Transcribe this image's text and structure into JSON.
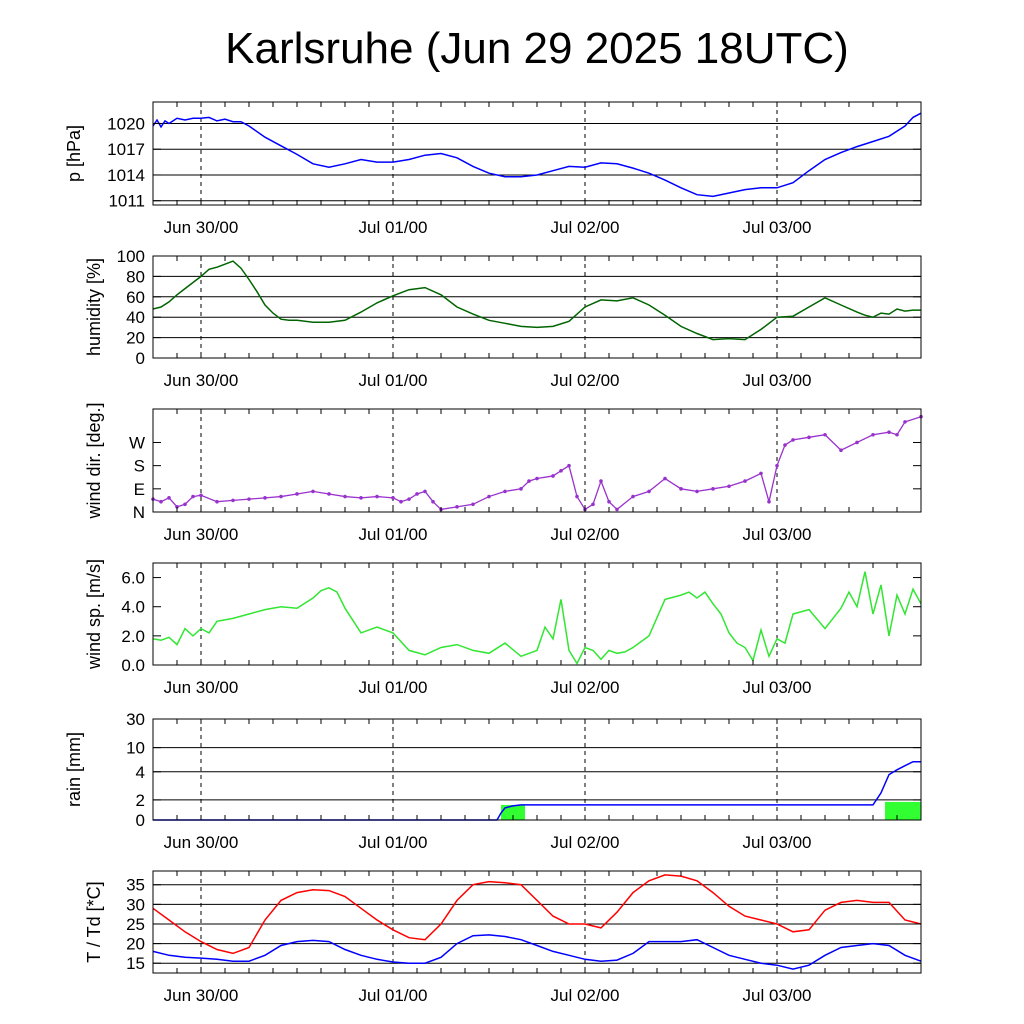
{
  "title": "Karlsruhe (Jun 29 2025 18UTC)",
  "x_axis": {
    "unit": "hours since Jun 29 18UTC",
    "range": [
      0,
      96
    ],
    "ticks": [
      {
        "value": 6,
        "label": "Jun 30/00"
      },
      {
        "value": 30,
        "label": "Jul 01/00"
      },
      {
        "value": 54,
        "label": "Jul 02/00"
      },
      {
        "value": 78,
        "label": "Jul 03/00"
      }
    ]
  },
  "chart_data": [
    {
      "type": "line",
      "ylabel": "p [hPa]",
      "ylim": [
        1010.5,
        1022.5
      ],
      "yticks": [
        1011,
        1014,
        1017,
        1020
      ],
      "ytick_labels": [
        "1011",
        "1014",
        "1017",
        "1020"
      ],
      "grid_y": [
        1011,
        1014,
        1017,
        1020
      ],
      "series": [
        {
          "name": "p",
          "color": "#0000ff",
          "x": [
            0,
            0.5,
            1,
            1.5,
            2,
            3,
            4,
            5,
            6,
            7,
            8,
            9,
            10,
            11,
            12,
            14,
            16,
            18,
            20,
            22,
            24,
            26,
            28,
            30,
            32,
            34,
            36,
            38,
            40,
            42,
            44,
            46,
            48,
            50,
            52,
            54,
            56,
            58,
            60,
            62,
            64,
            66,
            68,
            70,
            72,
            74,
            76,
            78,
            80,
            82,
            84,
            86,
            88,
            90,
            92,
            94,
            95,
            96
          ],
          "y": [
            1019.7,
            1020.4,
            1019.6,
            1020.3,
            1020.0,
            1020.6,
            1020.4,
            1020.6,
            1020.6,
            1020.7,
            1020.3,
            1020.5,
            1020.2,
            1020.2,
            1019.7,
            1018.4,
            1017.4,
            1016.4,
            1015.3,
            1014.9,
            1015.3,
            1015.8,
            1015.5,
            1015.5,
            1015.8,
            1016.3,
            1016.5,
            1016.0,
            1015.0,
            1014.2,
            1013.8,
            1013.8,
            1014.0,
            1014.5,
            1015.0,
            1014.9,
            1015.4,
            1015.3,
            1014.8,
            1014.2,
            1013.4,
            1012.5,
            1011.7,
            1011.5,
            1011.9,
            1012.3,
            1012.5,
            1012.5,
            1013.1,
            1014.5,
            1015.8,
            1016.6,
            1017.3,
            1017.9,
            1018.5,
            1019.7,
            1020.7,
            1021.2
          ]
        }
      ]
    },
    {
      "type": "line",
      "ylabel": "humidity [%]",
      "ylim": [
        0,
        100
      ],
      "yticks": [
        0,
        20,
        40,
        60,
        80,
        100
      ],
      "ytick_labels": [
        "0",
        "20",
        "40",
        "60",
        "80",
        "100"
      ],
      "grid_y": [
        20,
        40,
        60,
        80
      ],
      "series": [
        {
          "name": "humidity",
          "color": "#006400",
          "x": [
            0,
            1,
            2,
            3,
            4,
            5,
            6,
            7,
            8,
            9,
            10,
            11,
            12,
            13,
            14,
            15,
            16,
            17,
            18,
            20,
            22,
            24,
            26,
            28,
            30,
            32,
            34,
            36,
            38,
            40,
            42,
            44,
            46,
            48,
            50,
            52,
            54,
            56,
            58,
            60,
            62,
            64,
            66,
            68,
            70,
            72,
            74,
            76,
            78,
            80,
            82,
            84,
            86,
            88,
            89,
            90,
            91,
            92,
            93,
            94,
            95,
            96
          ],
          "y": [
            48,
            50,
            55,
            62,
            68,
            74,
            80,
            87,
            89,
            92,
            95,
            88,
            77,
            65,
            52,
            44,
            38,
            37,
            37,
            35,
            35,
            37,
            45,
            54,
            61,
            67,
            69,
            62,
            50,
            43,
            37,
            34,
            31,
            30,
            31,
            36,
            50,
            57,
            56,
            59,
            52,
            42,
            31,
            24,
            18,
            19,
            18,
            28,
            40,
            41,
            50,
            59,
            52,
            45,
            42,
            40,
            44,
            43,
            48,
            46,
            47,
            47
          ]
        }
      ]
    },
    {
      "type": "scatter",
      "ylabel": "wind dir. [deg.]",
      "ylim": [
        0,
        400
      ],
      "yticks": [
        0,
        90,
        180,
        270
      ],
      "ytick_labels": [
        "N",
        "E",
        "S",
        "W"
      ],
      "grid_y": [],
      "series": [
        {
          "name": "wind direction",
          "color": "#9932cc",
          "x": [
            0,
            1,
            2,
            3,
            4,
            5,
            6,
            8,
            10,
            12,
            14,
            16,
            18,
            20,
            22,
            24,
            26,
            28,
            30,
            31,
            32,
            33,
            34,
            35,
            36,
            38,
            40,
            42,
            44,
            46,
            47,
            48,
            50,
            51,
            52,
            53,
            54,
            55,
            56,
            57,
            58,
            60,
            62,
            64,
            66,
            68,
            70,
            72,
            74,
            76,
            77,
            78,
            79,
            80,
            82,
            84,
            86,
            88,
            90,
            92,
            93,
            94,
            96
          ],
          "y": [
            50,
            40,
            55,
            20,
            30,
            60,
            65,
            40,
            45,
            50,
            55,
            60,
            70,
            80,
            70,
            60,
            55,
            60,
            55,
            40,
            50,
            70,
            80,
            40,
            10,
            20,
            30,
            60,
            80,
            90,
            120,
            130,
            140,
            160,
            180,
            60,
            10,
            30,
            120,
            40,
            10,
            60,
            80,
            130,
            90,
            80,
            90,
            100,
            120,
            150,
            40,
            180,
            260,
            280,
            290,
            300,
            240,
            270,
            300,
            310,
            300,
            350,
            370
          ]
        }
      ]
    },
    {
      "type": "line",
      "ylabel": "wind sp. [m/s]",
      "ylim": [
        0,
        7
      ],
      "yticks": [
        0,
        2,
        4,
        6
      ],
      "ytick_labels": [
        "0.0",
        "2.0",
        "4.0",
        "6.0"
      ],
      "grid_y": [],
      "series": [
        {
          "name": "wind speed",
          "color": "#32e632",
          "x": [
            0,
            1,
            2,
            3,
            4,
            5,
            6,
            7,
            8,
            10,
            12,
            14,
            16,
            18,
            20,
            21,
            22,
            23,
            24,
            26,
            28,
            30,
            32,
            34,
            36,
            38,
            40,
            42,
            44,
            46,
            48,
            49,
            50,
            51,
            52,
            53,
            54,
            55,
            56,
            57,
            58,
            59,
            60,
            62,
            64,
            66,
            67,
            68,
            69,
            70,
            71,
            72,
            73,
            74,
            75,
            76,
            77,
            78,
            79,
            80,
            82,
            84,
            86,
            87,
            88,
            89,
            90,
            91,
            92,
            93,
            94,
            95,
            96
          ],
          "y": [
            1.8,
            1.7,
            1.9,
            1.4,
            2.5,
            2.0,
            2.5,
            2.2,
            3.0,
            3.2,
            3.5,
            3.8,
            4.0,
            3.9,
            4.6,
            5.1,
            5.3,
            5.0,
            3.9,
            2.2,
            2.6,
            2.2,
            1.0,
            0.7,
            1.2,
            1.4,
            1.0,
            0.8,
            1.5,
            0.6,
            1.0,
            2.6,
            1.8,
            4.5,
            1.0,
            0.1,
            1.2,
            1.0,
            0.4,
            1.0,
            0.8,
            0.9,
            1.2,
            2.0,
            4.5,
            4.8,
            5.0,
            4.6,
            5.0,
            4.2,
            3.5,
            2.2,
            1.5,
            1.2,
            0.3,
            2.4,
            0.6,
            1.8,
            1.5,
            3.5,
            3.8,
            2.5,
            3.9,
            5.0,
            4.0,
            6.4,
            3.5,
            5.5,
            2.0,
            4.8,
            3.5,
            5.2,
            4.2
          ]
        }
      ]
    },
    {
      "type": "line",
      "ylabel": "rain [mm]",
      "ylim": [
        0,
        30
      ],
      "yticks": [
        0,
        2,
        4,
        10,
        30
      ],
      "ytick_labels": [
        "0",
        "2",
        "4",
        "10",
        "30"
      ],
      "grid_y": [
        2,
        4,
        10,
        30
      ],
      "series": [
        {
          "name": "accumulated rain",
          "color": "#0000ff",
          "x": [
            0,
            43,
            43.5,
            44,
            45,
            46,
            47,
            48,
            90,
            91,
            92,
            93,
            94,
            95,
            96
          ],
          "y": [
            0,
            0,
            0.7,
            1.2,
            1.4,
            1.5,
            1.5,
            1.5,
            1.5,
            2.5,
            3.8,
            4.5,
            5.5,
            6.5,
            6.5
          ]
        }
      ],
      "bars": [
        {
          "name": "rain period",
          "color": "#32ff32",
          "x": [
            43.5,
            46.5
          ],
          "value": 1.5
        },
        {
          "name": "rain period",
          "color": "#32ff32",
          "x": [
            91.5,
            96
          ],
          "value": 1.8
        }
      ]
    },
    {
      "type": "line",
      "ylabel": "T / Td [*C]",
      "ylim": [
        12.5,
        38.5
      ],
      "yticks": [
        15,
        20,
        25,
        30,
        35
      ],
      "ytick_labels": [
        "15",
        "20",
        "25",
        "30",
        "35"
      ],
      "grid_y": [
        15,
        20,
        25,
        30,
        35
      ],
      "series": [
        {
          "name": "T",
          "color": "#ff0000",
          "x": [
            0,
            2,
            4,
            6,
            8,
            10,
            12,
            14,
            16,
            18,
            20,
            22,
            24,
            26,
            28,
            30,
            32,
            34,
            36,
            38,
            40,
            42,
            44,
            46,
            48,
            50,
            52,
            54,
            56,
            58,
            60,
            62,
            64,
            66,
            68,
            70,
            72,
            74,
            76,
            78,
            80,
            82,
            84,
            86,
            88,
            90,
            92,
            94,
            96
          ],
          "y": [
            29,
            26,
            23,
            20.5,
            18.5,
            17.5,
            19,
            26,
            31,
            33,
            33.7,
            33.5,
            32,
            29,
            26,
            23.5,
            21.5,
            21,
            25,
            31,
            35,
            35.8,
            35.5,
            35,
            31,
            27,
            25,
            25,
            24,
            28,
            33,
            36,
            37.5,
            37.2,
            36,
            33,
            29.5,
            27,
            26,
            25,
            23,
            23.5,
            28.5,
            30.5,
            31,
            30.5,
            30.5,
            26,
            25
          ]
        },
        {
          "name": "Td",
          "color": "#0000ff",
          "x": [
            0,
            2,
            4,
            6,
            8,
            10,
            12,
            14,
            16,
            18,
            20,
            22,
            24,
            26,
            28,
            30,
            32,
            34,
            36,
            38,
            40,
            42,
            44,
            46,
            48,
            50,
            52,
            54,
            56,
            58,
            60,
            62,
            64,
            66,
            68,
            70,
            72,
            74,
            76,
            78,
            80,
            82,
            84,
            86,
            88,
            90,
            92,
            94,
            96
          ],
          "y": [
            18,
            17,
            16.5,
            16.3,
            16,
            15.5,
            15.5,
            17,
            19.5,
            20.5,
            20.8,
            20.5,
            18.5,
            17,
            16,
            15.3,
            15,
            15,
            16.5,
            20,
            22,
            22.2,
            21.8,
            21,
            19.5,
            18,
            17,
            16,
            15.5,
            15.8,
            17.5,
            20.5,
            20.5,
            20.5,
            21,
            19,
            17,
            16,
            15,
            14.5,
            13.5,
            14.5,
            17,
            19,
            19.5,
            20,
            19.5,
            17,
            15.5
          ]
        }
      ]
    }
  ]
}
